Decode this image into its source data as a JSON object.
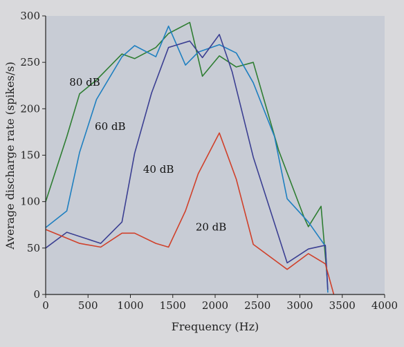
{
  "chart_data": {
    "type": "line",
    "title": "",
    "xlabel": "Frequency (Hz)",
    "ylabel": "Average discharge rate (spikes/s)",
    "xlim": [
      0,
      4000
    ],
    "ylim": [
      0,
      300
    ],
    "xticks": [
      0,
      500,
      1000,
      1500,
      2000,
      2500,
      3000,
      3500,
      4000
    ],
    "yticks": [
      0,
      50,
      100,
      150,
      200,
      250,
      300
    ],
    "grid": false,
    "legend": "none",
    "series": [
      {
        "name": "80 dB",
        "color": "#2e7d32",
        "points": [
          [
            0,
            100
          ],
          [
            250,
            170
          ],
          [
            400,
            216
          ],
          [
            600,
            231
          ],
          [
            900,
            259
          ],
          [
            1050,
            254
          ],
          [
            1300,
            266
          ],
          [
            1450,
            281
          ],
          [
            1700,
            293
          ],
          [
            1850,
            235
          ],
          [
            2050,
            257
          ],
          [
            2250,
            245
          ],
          [
            2450,
            250
          ],
          [
            2750,
            155
          ],
          [
            3050,
            83
          ],
          [
            3100,
            73
          ],
          [
            3250,
            95
          ],
          [
            3320,
            20
          ]
        ]
      },
      {
        "name": "60 dB",
        "color": "#1e7fc0",
        "points": [
          [
            0,
            72
          ],
          [
            250,
            90
          ],
          [
            400,
            153
          ],
          [
            600,
            210
          ],
          [
            900,
            256
          ],
          [
            1050,
            268
          ],
          [
            1300,
            256
          ],
          [
            1450,
            289
          ],
          [
            1650,
            247
          ],
          [
            1800,
            261
          ],
          [
            2050,
            269
          ],
          [
            2250,
            260
          ],
          [
            2450,
            228
          ],
          [
            2700,
            170
          ],
          [
            2850,
            103
          ],
          [
            3100,
            78
          ],
          [
            3300,
            52
          ],
          [
            3330,
            2
          ]
        ]
      },
      {
        "name": "40 dB",
        "color": "#3b3f92",
        "points": [
          [
            0,
            50
          ],
          [
            250,
            67
          ],
          [
            650,
            55
          ],
          [
            900,
            78
          ],
          [
            1050,
            152
          ],
          [
            1250,
            217
          ],
          [
            1450,
            266
          ],
          [
            1700,
            273
          ],
          [
            1850,
            255
          ],
          [
            2050,
            280
          ],
          [
            2200,
            240
          ],
          [
            2450,
            148
          ],
          [
            2850,
            34
          ],
          [
            3100,
            49
          ],
          [
            3300,
            53
          ],
          [
            3330,
            5
          ]
        ]
      },
      {
        "name": "20 dB",
        "color": "#d0402a",
        "points": [
          [
            0,
            70
          ],
          [
            400,
            55
          ],
          [
            650,
            51
          ],
          [
            900,
            66
          ],
          [
            1050,
            66
          ],
          [
            1300,
            55
          ],
          [
            1450,
            51
          ],
          [
            1650,
            90
          ],
          [
            1800,
            130
          ],
          [
            2050,
            174
          ],
          [
            2250,
            124
          ],
          [
            2450,
            54
          ],
          [
            2850,
            27
          ],
          [
            3100,
            44
          ],
          [
            3300,
            33
          ],
          [
            3400,
            0
          ]
        ]
      }
    ],
    "annotations": [
      {
        "text": "80 dB",
        "x": 280,
        "y": 225
      },
      {
        "text": "60 dB",
        "x": 580,
        "y": 177
      },
      {
        "text": "40 dB",
        "x": 1150,
        "y": 131
      },
      {
        "text": "20 dB",
        "x": 1770,
        "y": 69
      }
    ]
  }
}
